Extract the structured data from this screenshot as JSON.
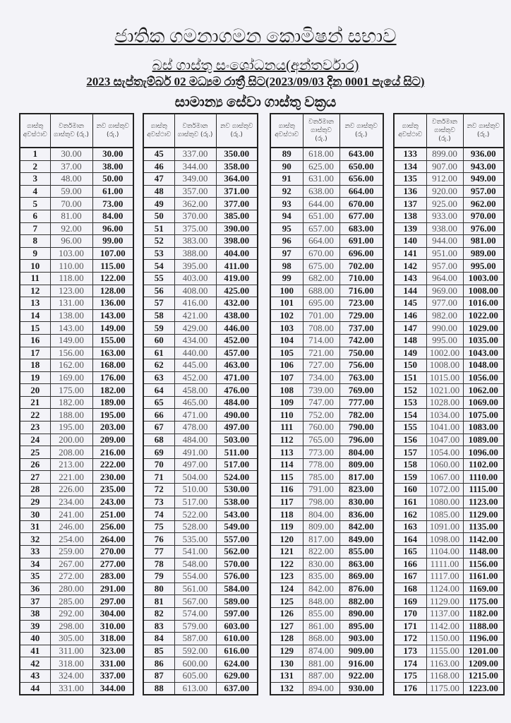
{
  "header": {
    "title": "ජාතික ගමනාගමන කොමිෂන් සභාව",
    "subtitle": "බස් ගාස්තු සංශෝධනය(අන්තර්වාර)",
    "effective": "2023 සැප්තැම්බර් 02 මධ්‍යම රාත්‍රී සිට(2023/09/03 දින 0001 පැයේ සිට)",
    "table_title": "සාමාන්‍ය සේවා ගාස්තු වක්‍රය"
  },
  "columns": [
    "ගාස්තු අවස්ථාව",
    "වර්තමාන ගාස්තුව (රු.)",
    "නව ගාස්තුව (රු.)"
  ],
  "tables": [
    {
      "rows": [
        [
          "1",
          "30.00",
          "30.00"
        ],
        [
          "2",
          "37.00",
          "38.00"
        ],
        [
          "3",
          "48.00",
          "50.00"
        ],
        [
          "4",
          "59.00",
          "61.00"
        ],
        [
          "5",
          "70.00",
          "73.00"
        ],
        [
          "6",
          "81.00",
          "84.00"
        ],
        [
          "7",
          "92.00",
          "96.00"
        ],
        [
          "8",
          "96.00",
          "99.00"
        ],
        [
          "9",
          "103.00",
          "107.00"
        ],
        [
          "10",
          "110.00",
          "115.00"
        ],
        [
          "11",
          "118.00",
          "122.00"
        ],
        [
          "12",
          "123.00",
          "128.00"
        ],
        [
          "13",
          "131.00",
          "136.00"
        ],
        [
          "14",
          "138.00",
          "143.00"
        ],
        [
          "15",
          "143.00",
          "149.00"
        ],
        [
          "16",
          "149.00",
          "155.00"
        ],
        [
          "17",
          "156.00",
          "163.00"
        ],
        [
          "18",
          "162.00",
          "168.00"
        ],
        [
          "19",
          "169.00",
          "176.00"
        ],
        [
          "20",
          "175.00",
          "182.00"
        ],
        [
          "21",
          "182.00",
          "189.00"
        ],
        [
          "22",
          "188.00",
          "195.00"
        ],
        [
          "23",
          "195.00",
          "203.00"
        ],
        [
          "24",
          "200.00",
          "209.00"
        ],
        [
          "25",
          "208.00",
          "216.00"
        ],
        [
          "26",
          "213.00",
          "222.00"
        ],
        [
          "27",
          "221.00",
          "230.00"
        ],
        [
          "28",
          "226.00",
          "235.00"
        ],
        [
          "29",
          "234.00",
          "243.00"
        ],
        [
          "30",
          "241.00",
          "251.00"
        ],
        [
          "31",
          "246.00",
          "256.00"
        ],
        [
          "32",
          "254.00",
          "264.00"
        ],
        [
          "33",
          "259.00",
          "270.00"
        ],
        [
          "34",
          "267.00",
          "277.00"
        ],
        [
          "35",
          "272.00",
          "283.00"
        ],
        [
          "36",
          "280.00",
          "291.00"
        ],
        [
          "37",
          "285.00",
          "297.00"
        ],
        [
          "38",
          "292.00",
          "304.00"
        ],
        [
          "39",
          "298.00",
          "310.00"
        ],
        [
          "40",
          "305.00",
          "318.00"
        ],
        [
          "41",
          "311.00",
          "323.00"
        ],
        [
          "42",
          "318.00",
          "331.00"
        ],
        [
          "43",
          "324.00",
          "337.00"
        ],
        [
          "44",
          "331.00",
          "344.00"
        ]
      ]
    },
    {
      "rows": [
        [
          "45",
          "337.00",
          "350.00"
        ],
        [
          "46",
          "344.00",
          "358.00"
        ],
        [
          "47",
          "349.00",
          "364.00"
        ],
        [
          "48",
          "357.00",
          "371.00"
        ],
        [
          "49",
          "362.00",
          "377.00"
        ],
        [
          "50",
          "370.00",
          "385.00"
        ],
        [
          "51",
          "375.00",
          "390.00"
        ],
        [
          "52",
          "383.00",
          "398.00"
        ],
        [
          "53",
          "388.00",
          "404.00"
        ],
        [
          "54",
          "395.00",
          "411.00"
        ],
        [
          "55",
          "403.00",
          "419.00"
        ],
        [
          "56",
          "408.00",
          "425.00"
        ],
        [
          "57",
          "416.00",
          "432.00"
        ],
        [
          "58",
          "421.00",
          "438.00"
        ],
        [
          "59",
          "429.00",
          "446.00"
        ],
        [
          "60",
          "434.00",
          "452.00"
        ],
        [
          "61",
          "440.00",
          "457.00"
        ],
        [
          "62",
          "445.00",
          "463.00"
        ],
        [
          "63",
          "452.00",
          "471.00"
        ],
        [
          "64",
          "458.00",
          "476.00"
        ],
        [
          "65",
          "465.00",
          "484.00"
        ],
        [
          "66",
          "471.00",
          "490.00"
        ],
        [
          "67",
          "478.00",
          "497.00"
        ],
        [
          "68",
          "484.00",
          "503.00"
        ],
        [
          "69",
          "491.00",
          "511.00"
        ],
        [
          "70",
          "497.00",
          "517.00"
        ],
        [
          "71",
          "504.00",
          "524.00"
        ],
        [
          "72",
          "510.00",
          "530.00"
        ],
        [
          "73",
          "517.00",
          "538.00"
        ],
        [
          "74",
          "522.00",
          "543.00"
        ],
        [
          "75",
          "528.00",
          "549.00"
        ],
        [
          "76",
          "535.00",
          "557.00"
        ],
        [
          "77",
          "541.00",
          "562.00"
        ],
        [
          "78",
          "548.00",
          "570.00"
        ],
        [
          "79",
          "554.00",
          "576.00"
        ],
        [
          "80",
          "561.00",
          "584.00"
        ],
        [
          "81",
          "567.00",
          "589.00"
        ],
        [
          "82",
          "574.00",
          "597.00"
        ],
        [
          "83",
          "579.00",
          "603.00"
        ],
        [
          "84",
          "587.00",
          "610.00"
        ],
        [
          "85",
          "592.00",
          "616.00"
        ],
        [
          "86",
          "600.00",
          "624.00"
        ],
        [
          "87",
          "605.00",
          "629.00"
        ],
        [
          "88",
          "613.00",
          "637.00"
        ]
      ]
    },
    {
      "rows": [
        [
          "89",
          "618.00",
          "643.00"
        ],
        [
          "90",
          "625.00",
          "650.00"
        ],
        [
          "91",
          "631.00",
          "656.00"
        ],
        [
          "92",
          "638.00",
          "664.00"
        ],
        [
          "93",
          "644.00",
          "670.00"
        ],
        [
          "94",
          "651.00",
          "677.00"
        ],
        [
          "95",
          "657.00",
          "683.00"
        ],
        [
          "96",
          "664.00",
          "691.00"
        ],
        [
          "97",
          "670.00",
          "696.00"
        ],
        [
          "98",
          "675.00",
          "702.00"
        ],
        [
          "99",
          "682.00",
          "710.00"
        ],
        [
          "100",
          "688.00",
          "716.00"
        ],
        [
          "101",
          "695.00",
          "723.00"
        ],
        [
          "102",
          "701.00",
          "729.00"
        ],
        [
          "103",
          "708.00",
          "737.00"
        ],
        [
          "104",
          "714.00",
          "742.00"
        ],
        [
          "105",
          "721.00",
          "750.00"
        ],
        [
          "106",
          "727.00",
          "756.00"
        ],
        [
          "107",
          "734.00",
          "763.00"
        ],
        [
          "108",
          "739.00",
          "769.00"
        ],
        [
          "109",
          "747.00",
          "777.00"
        ],
        [
          "110",
          "752.00",
          "782.00"
        ],
        [
          "111",
          "760.00",
          "790.00"
        ],
        [
          "112",
          "765.00",
          "796.00"
        ],
        [
          "113",
          "773.00",
          "804.00"
        ],
        [
          "114",
          "778.00",
          "809.00"
        ],
        [
          "115",
          "785.00",
          "817.00"
        ],
        [
          "116",
          "791.00",
          "823.00"
        ],
        [
          "117",
          "798.00",
          "830.00"
        ],
        [
          "118",
          "804.00",
          "836.00"
        ],
        [
          "119",
          "809.00",
          "842.00"
        ],
        [
          "120",
          "817.00",
          "849.00"
        ],
        [
          "121",
          "822.00",
          "855.00"
        ],
        [
          "122",
          "830.00",
          "863.00"
        ],
        [
          "123",
          "835.00",
          "869.00"
        ],
        [
          "124",
          "842.00",
          "876.00"
        ],
        [
          "125",
          "848.00",
          "882.00"
        ],
        [
          "126",
          "855.00",
          "890.00"
        ],
        [
          "127",
          "861.00",
          "895.00"
        ],
        [
          "128",
          "868.00",
          "903.00"
        ],
        [
          "129",
          "874.00",
          "909.00"
        ],
        [
          "130",
          "881.00",
          "916.00"
        ],
        [
          "131",
          "887.00",
          "922.00"
        ],
        [
          "132",
          "894.00",
          "930.00"
        ]
      ]
    },
    {
      "rows": [
        [
          "133",
          "899.00",
          "936.00"
        ],
        [
          "134",
          "907.00",
          "943.00"
        ],
        [
          "135",
          "912.00",
          "949.00"
        ],
        [
          "136",
          "920.00",
          "957.00"
        ],
        [
          "137",
          "925.00",
          "962.00"
        ],
        [
          "138",
          "933.00",
          "970.00"
        ],
        [
          "139",
          "938.00",
          "976.00"
        ],
        [
          "140",
          "944.00",
          "981.00"
        ],
        [
          "141",
          "951.00",
          "989.00"
        ],
        [
          "142",
          "957.00",
          "995.00"
        ],
        [
          "143",
          "964.00",
          "1003.00"
        ],
        [
          "144",
          "969.00",
          "1008.00"
        ],
        [
          "145",
          "977.00",
          "1016.00"
        ],
        [
          "146",
          "982.00",
          "1022.00"
        ],
        [
          "147",
          "990.00",
          "1029.00"
        ],
        [
          "148",
          "995.00",
          "1035.00"
        ],
        [
          "149",
          "1002.00",
          "1043.00"
        ],
        [
          "150",
          "1008.00",
          "1048.00"
        ],
        [
          "151",
          "1015.00",
          "1056.00"
        ],
        [
          "152",
          "1021.00",
          "1062.00"
        ],
        [
          "153",
          "1028.00",
          "1069.00"
        ],
        [
          "154",
          "1034.00",
          "1075.00"
        ],
        [
          "155",
          "1041.00",
          "1083.00"
        ],
        [
          "156",
          "1047.00",
          "1089.00"
        ],
        [
          "157",
          "1054.00",
          "1096.00"
        ],
        [
          "158",
          "1060.00",
          "1102.00"
        ],
        [
          "159",
          "1067.00",
          "1110.00"
        ],
        [
          "160",
          "1072.00",
          "1115.00"
        ],
        [
          "161",
          "1080.00",
          "1123.00"
        ],
        [
          "162",
          "1085.00",
          "1129.00"
        ],
        [
          "163",
          "1091.00",
          "1135.00"
        ],
        [
          "164",
          "1098.00",
          "1142.00"
        ],
        [
          "165",
          "1104.00",
          "1148.00"
        ],
        [
          "166",
          "1111.00",
          "1156.00"
        ],
        [
          "167",
          "1117.00",
          "1161.00"
        ],
        [
          "168",
          "1124.00",
          "1169.00"
        ],
        [
          "169",
          "1129.00",
          "1175.00"
        ],
        [
          "170",
          "1137.00",
          "1182.00"
        ],
        [
          "171",
          "1142.00",
          "1188.00"
        ],
        [
          "172",
          "1150.00",
          "1196.00"
        ],
        [
          "173",
          "1155.00",
          "1201.00"
        ],
        [
          "174",
          "1163.00",
          "1209.00"
        ],
        [
          "175",
          "1168.00",
          "1215.00"
        ],
        [
          "176",
          "1175.00",
          "1223.00"
        ]
      ]
    }
  ]
}
